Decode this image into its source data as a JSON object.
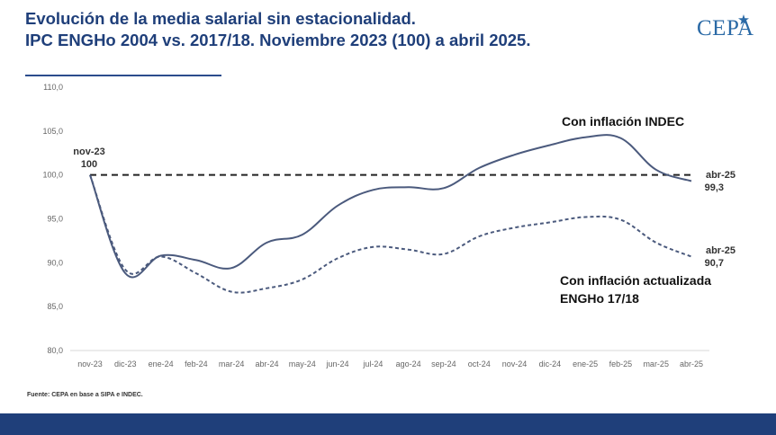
{
  "header": {
    "title_line1": "Evolución de la media salarial sin estacionalidad.",
    "title_line2": "IPC ENGHo 2004 vs. 2017/18. Noviembre 2023 (100) a abril 2025.",
    "logo_text": "CEPA"
  },
  "colors": {
    "title": "#1f3f7a",
    "series_indec": "#4b5a7d",
    "series_engho": "#4b5a7d",
    "baseline": "#222222",
    "footer": "#1f3f7a"
  },
  "chart_data": {
    "type": "line",
    "title": "Evolución de la media salarial sin estacionalidad. IPC ENGHo 2004 vs. 2017/18. Noviembre 2023 (100) a abril 2025.",
    "categories": [
      "nov-23",
      "dic-23",
      "ene-24",
      "feb-24",
      "mar-24",
      "abr-24",
      "may-24",
      "jun-24",
      "jul-24",
      "ago-24",
      "sep-24",
      "oct-24",
      "nov-24",
      "dic-24",
      "ene-25",
      "feb-25",
      "mar-25",
      "abr-25"
    ],
    "ylim": [
      80,
      110
    ],
    "yticks": [
      "80,0",
      "85,0",
      "90,0",
      "95,0",
      "100,0",
      "105,0",
      "110,0"
    ],
    "series": [
      {
        "name": "Con inflación INDEC",
        "style": "solid",
        "values": [
          100.0,
          88.8,
          90.8,
          90.3,
          89.4,
          92.3,
          93.2,
          96.5,
          98.3,
          98.6,
          98.5,
          100.8,
          102.3,
          103.4,
          104.3,
          104.2,
          100.6,
          99.3
        ]
      },
      {
        "name": "Con inflación actualizada ENGHo 17/18",
        "style": "dashed",
        "values": [
          100.0,
          89.2,
          90.7,
          88.8,
          86.7,
          87.1,
          88.1,
          90.5,
          91.8,
          91.5,
          91.0,
          93.0,
          94.0,
          94.6,
          95.2,
          94.9,
          92.3,
          90.7
        ]
      }
    ],
    "baseline": {
      "value": 100,
      "style": "dashed"
    },
    "annotations": {
      "start_label": "nov-23",
      "start_value": "100",
      "end_label_indec": "abr-25",
      "end_value_indec": "99,3",
      "end_label_engho": "abr-25",
      "end_value_engho": "90,7",
      "legend_indec": "Con inflación INDEC",
      "legend_engho_line1": "Con inflación actualizada",
      "legend_engho_line2": "ENGHo 17/18"
    },
    "grid": false
  },
  "footer": {
    "source": "Fuente: CEPA en base a SIPA e INDEC."
  }
}
